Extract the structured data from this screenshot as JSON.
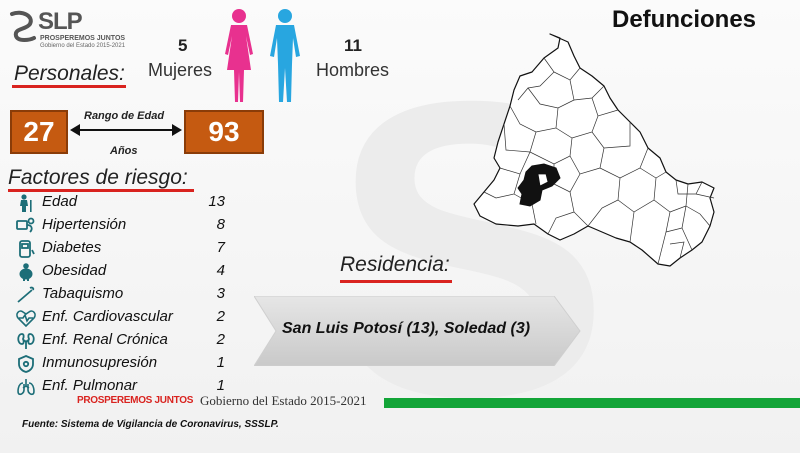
{
  "header": {
    "logo_text": "SLP",
    "logo_tagline": "PROSPEREMOS JUNTOS",
    "logo_subtitle": "Gobierno del Estado 2015-2021",
    "title": "Defunciones"
  },
  "gender": {
    "women_count": "5",
    "women_label": "Mujeres",
    "men_count": "11",
    "men_label": "Hombres",
    "women_color": "#e8318f",
    "men_color": "#28a6e0"
  },
  "personales": {
    "heading": "Personales:",
    "age_min": "27",
    "age_max": "93",
    "range_label": "Rango de Edad",
    "unit_label": "Años"
  },
  "factores": {
    "heading": "Factores de riesgo:",
    "items": [
      {
        "label": "Edad",
        "value": "13",
        "icon": "elderly-person-icon"
      },
      {
        "label": "Hipertensión",
        "value": "8",
        "icon": "blood-pressure-icon"
      },
      {
        "label": "Diabetes",
        "value": "7",
        "icon": "glucose-meter-icon"
      },
      {
        "label": "Obesidad",
        "value": "4",
        "icon": "obese-person-icon"
      },
      {
        "label": "Tabaquismo",
        "value": "3",
        "icon": "cigarette-icon"
      },
      {
        "label": "Enf. Cardiovascular",
        "value": "2",
        "icon": "heart-pulse-icon"
      },
      {
        "label": "Enf. Renal Crónica",
        "value": "2",
        "icon": "kidneys-icon"
      },
      {
        "label": "Inmunosupresión",
        "value": "1",
        "icon": "shield-icon"
      },
      {
        "label": "Enf. Pulmonar",
        "value": "1",
        "icon": "lungs-icon"
      }
    ]
  },
  "residencia": {
    "heading": "Residencia:",
    "text": "San Luis Potosí (13), Soledad (3)"
  },
  "footer": {
    "tagline": "PROSPEREMOS JUNTOS",
    "government": "Gobierno del Estado 2015-2021",
    "source": "Fuente: Sistema de Vigilancia de Coronavirus, SSSLP."
  },
  "colors": {
    "accent_red": "#d9231f",
    "age_box": "#c55a11",
    "footer_green": "#13a538",
    "icon_teal": "#1d6e78"
  }
}
